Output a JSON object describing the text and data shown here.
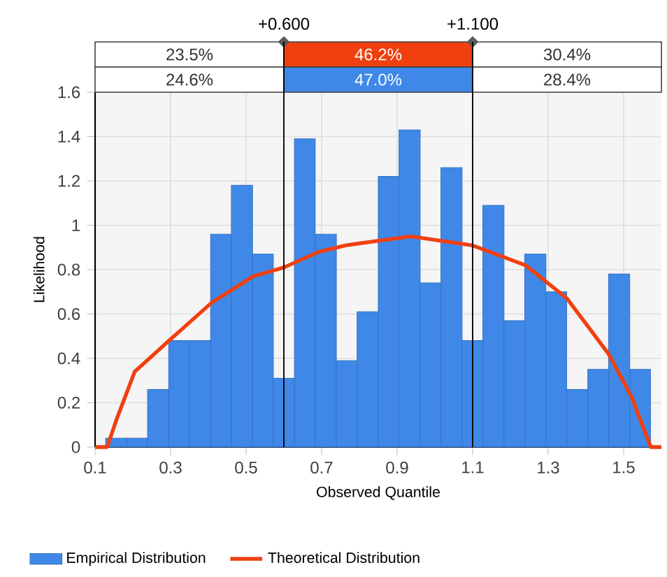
{
  "chart_data": {
    "type": "histogram",
    "xlabel": "Observed Quantile",
    "ylabel": "Likelihood",
    "bins": [
      0.128,
      0.184,
      0.239,
      0.295,
      0.35,
      0.406,
      0.461,
      0.517,
      0.572,
      0.628,
      0.683,
      0.739,
      0.794,
      0.85,
      0.905,
      0.961,
      1.016,
      1.072,
      1.127,
      1.183,
      1.238,
      1.294,
      1.349,
      1.405,
      1.46,
      1.516,
      1.571
    ],
    "series": [
      {
        "name": "Empirical Distribution",
        "color": "#3f88e8",
        "values": [
          0.04,
          0.04,
          0.26,
          0.48,
          0.48,
          0.96,
          1.18,
          0.87,
          0.31,
          1.39,
          0.96,
          0.39,
          0.61,
          1.22,
          1.43,
          0.74,
          1.26,
          0.48,
          1.09,
          0.57,
          0.87,
          0.7,
          0.26,
          0.35,
          0.78,
          0.35
        ]
      },
      {
        "name": "Theoretical Distribution",
        "type": "line",
        "color": "#f0400f",
        "x": [
          0.1,
          0.132,
          0.158,
          0.205,
          0.296,
          0.408,
          0.519,
          0.6,
          0.692,
          0.765,
          0.936,
          1.098,
          1.24,
          1.35,
          1.46,
          1.52,
          1.572,
          1.6
        ],
        "values": [
          0,
          0,
          0.13,
          0.34,
          0.48,
          0.65,
          0.77,
          0.81,
          0.88,
          0.91,
          0.95,
          0.91,
          0.82,
          0.67,
          0.42,
          0.23,
          0,
          0
        ]
      }
    ],
    "xlim": [
      0.1,
      1.6
    ],
    "ylim": [
      0,
      1.6
    ],
    "xticks": [
      0.1,
      0.3,
      0.5,
      0.7,
      0.9,
      1.1,
      1.3,
      1.5
    ],
    "yticks": [
      0,
      0.2,
      0.4,
      0.6,
      0.8,
      1,
      1.2,
      1.4,
      1.6
    ],
    "ref_lines": [
      {
        "axis": "x",
        "value": 0.6,
        "label": "+0.600"
      },
      {
        "axis": "x",
        "value": 1.1,
        "label": "+1.100"
      }
    ],
    "annotations": [
      "23.5%",
      "46.2%",
      "30.4%",
      "24.6%",
      "47.0%",
      "28.4%"
    ],
    "grid": true,
    "legend": "bottom left"
  }
}
